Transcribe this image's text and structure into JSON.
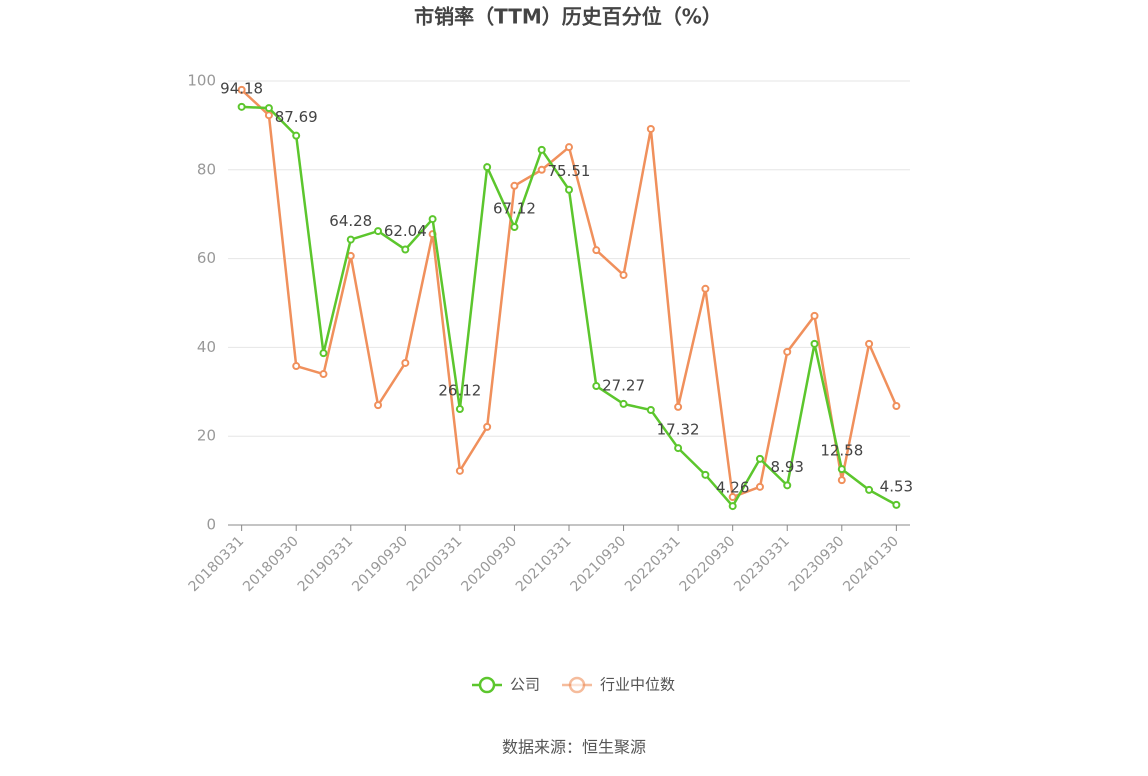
{
  "chart_data": {
    "type": "line",
    "title": "市销率（TTM）历史百分位（%）",
    "categories": [
      "20180331",
      null,
      "20180930",
      null,
      "20190331",
      null,
      "20190930",
      null,
      "20200331",
      null,
      "20200930",
      null,
      "20210331",
      null,
      "20210930",
      null,
      "20220331",
      null,
      "20220930",
      null,
      "20230331",
      null,
      "20230930",
      null,
      "20240130"
    ],
    "series": [
      {
        "name": "公司",
        "color": "#5cc62d",
        "values": [
          94.18,
          93.9,
          87.69,
          38.7,
          64.28,
          66.2,
          62.04,
          68.9,
          26.12,
          80.6,
          67.12,
          84.5,
          75.51,
          31.3,
          27.27,
          25.9,
          17.32,
          11.3,
          4.26,
          14.9,
          8.93,
          40.8,
          12.58,
          7.9,
          4.53
        ],
        "value_labels": [
          "94.18",
          null,
          "87.69",
          null,
          "64.28",
          null,
          "62.04",
          null,
          "26.12",
          null,
          "67.12",
          null,
          "75.51",
          null,
          "27.27",
          null,
          "17.32",
          null,
          "4.26",
          null,
          "8.93",
          null,
          "12.58",
          null,
          "4.53"
        ]
      },
      {
        "name": "行业中位数",
        "color": "#f0905c",
        "values": [
          98.0,
          92.3,
          35.8,
          34.0,
          60.6,
          27.0,
          36.5,
          65.5,
          12.2,
          22.1,
          76.4,
          80.0,
          85.1,
          61.9,
          56.3,
          89.2,
          26.6,
          53.2,
          6.3,
          8.6,
          39.0,
          47.1,
          10.1,
          40.8,
          26.8
        ]
      }
    ],
    "ylim": [
      0,
      100
    ],
    "yticks": [
      0,
      20,
      40,
      60,
      80,
      100
    ],
    "grid": true,
    "source": "数据来源：恒生聚源"
  }
}
